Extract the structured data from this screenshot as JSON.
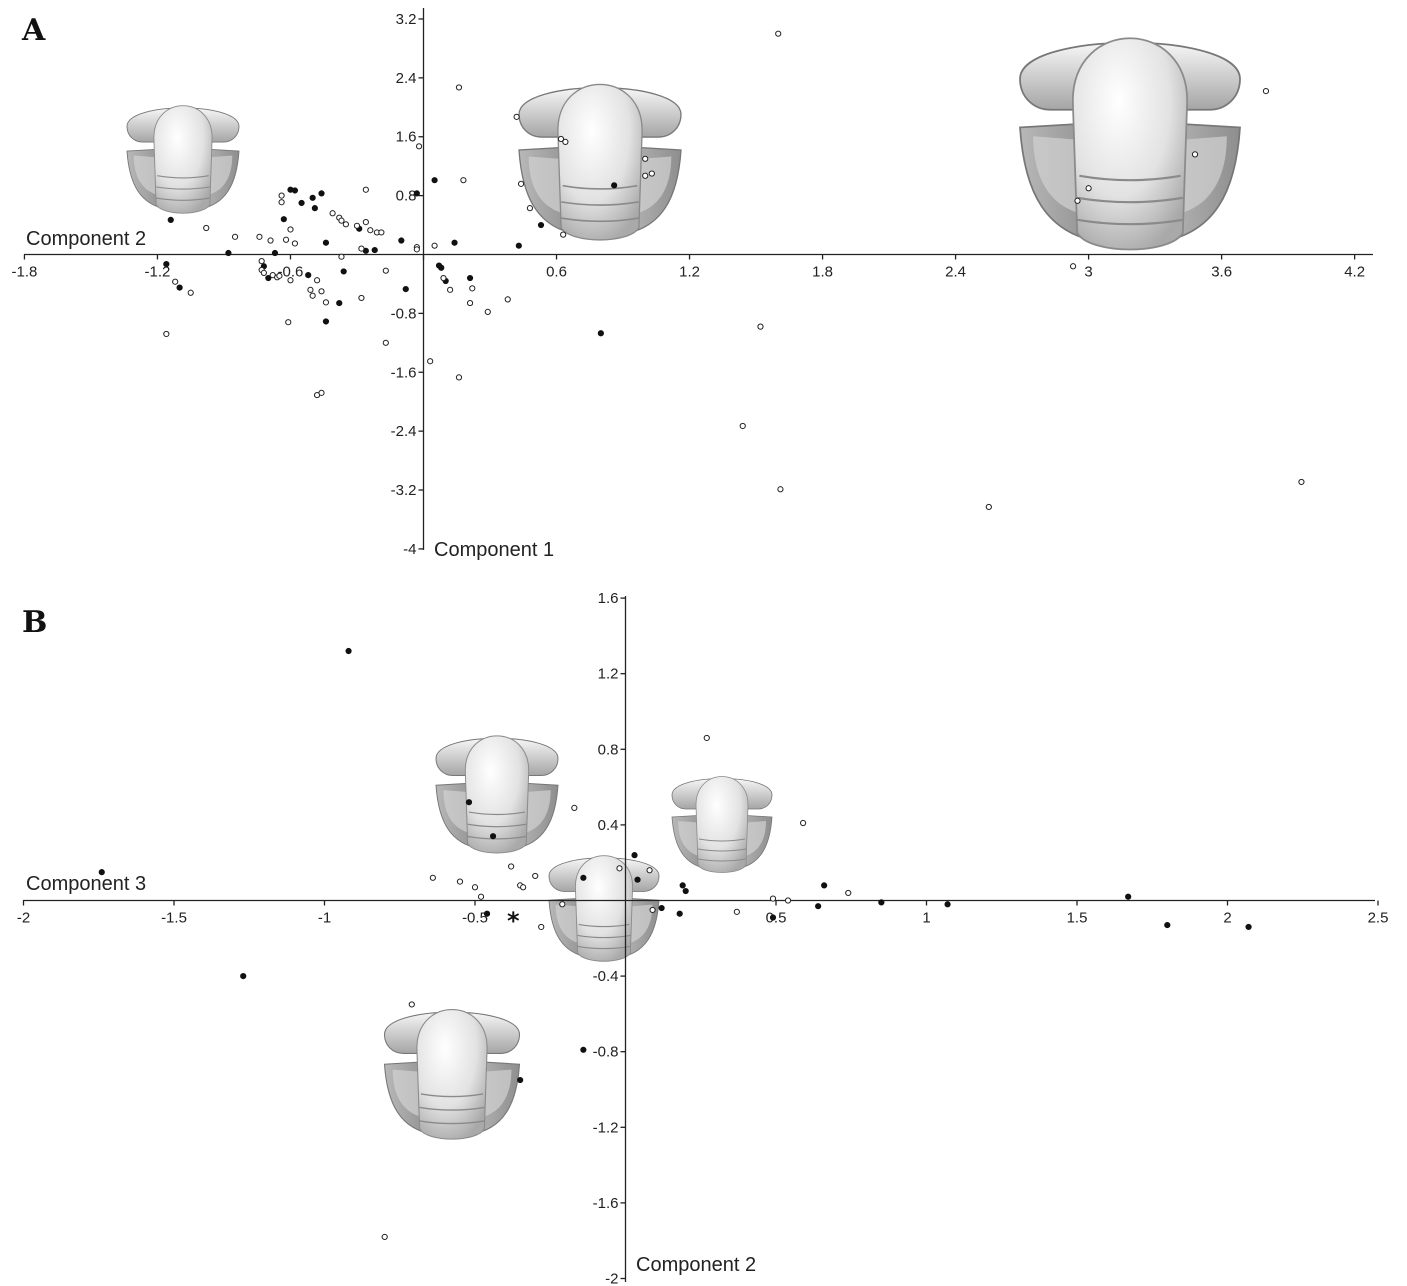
{
  "colors": {
    "filled": "#111111",
    "open": "#ffffff",
    "axis": "#222222",
    "cranidium_light": "#eeeeee",
    "cranidium_dark": "#9a9a9a"
  },
  "icons": {
    "cranidium": "trilobite-cranidium-illustration"
  },
  "chart_data": [
    {
      "panel": "A",
      "type": "scatter",
      "xlabel": "Component 1",
      "ylabel": "Component 2",
      "xlim": [
        -1.8,
        4.3
      ],
      "ylim": [
        -4,
        3.3
      ],
      "xticks": [
        -1.8,
        -1.2,
        -0.6,
        0,
        0.6,
        1.2,
        1.8,
        2.4,
        3,
        3.6,
        4.2
      ],
      "xtick_labels": [
        "-1.8",
        "-1.2",
        "-0.6",
        "",
        "0.6",
        "1.2",
        "1.8",
        "2.4",
        "3",
        "3.6",
        "4.2"
      ],
      "yticks": [
        3.2,
        2.4,
        1.6,
        0.8,
        -0.8,
        -1.6,
        -2.4,
        -3.2,
        -4
      ],
      "ytick_labels": [
        "3.2",
        "2.4",
        "1.6",
        "0.8",
        "-0.8",
        "-1.6",
        "-2.4",
        "-3.2",
        "-4"
      ],
      "grid": false,
      "series": [
        {
          "marker": "filled",
          "points": [
            [
              -1.14,
              0.47
            ],
            [
              -1.16,
              -0.13
            ],
            [
              -1.1,
              -0.45
            ],
            [
              -0.88,
              0.02
            ],
            [
              -0.72,
              -0.16
            ],
            [
              -0.7,
              -0.32
            ],
            [
              -0.67,
              0.02
            ],
            [
              -0.63,
              0.48
            ],
            [
              -0.6,
              0.88
            ],
            [
              -0.58,
              0.87
            ],
            [
              -0.55,
              0.7
            ],
            [
              -0.52,
              -0.28
            ],
            [
              -0.5,
              0.77
            ],
            [
              -0.49,
              0.63
            ],
            [
              -0.46,
              0.83
            ],
            [
              -0.44,
              0.16
            ],
            [
              -0.44,
              -0.91
            ],
            [
              -0.38,
              -0.66
            ],
            [
              -0.36,
              -0.23
            ],
            [
              -0.29,
              0.35
            ],
            [
              -0.26,
              0.05
            ],
            [
              -0.22,
              0.06
            ],
            [
              -0.1,
              0.19
            ],
            [
              -0.08,
              -0.47
            ],
            [
              -0.03,
              0.83
            ],
            [
              0.05,
              1.01
            ],
            [
              0.07,
              -0.15
            ],
            [
              0.08,
              -0.18
            ],
            [
              0.1,
              -0.36
            ],
            [
              0.14,
              0.16
            ],
            [
              0.21,
              -0.32
            ],
            [
              0.43,
              0.12
            ],
            [
              0.53,
              0.4
            ],
            [
              0.8,
              -1.07
            ],
            [
              0.86,
              0.94
            ]
          ]
        },
        {
          "marker": "open",
          "points": [
            [
              -1.16,
              -1.08
            ],
            [
              -1.12,
              -0.37
            ],
            [
              -1.05,
              -0.52
            ],
            [
              -0.98,
              0.36
            ],
            [
              -0.85,
              0.24
            ],
            [
              -0.74,
              0.24
            ],
            [
              -0.73,
              -0.09
            ],
            [
              -0.73,
              -0.21
            ],
            [
              -0.72,
              -0.25
            ],
            [
              -0.69,
              0.19
            ],
            [
              -0.68,
              -0.28
            ],
            [
              -0.66,
              -0.31
            ],
            [
              -0.65,
              -0.29
            ],
            [
              -0.64,
              0.71
            ],
            [
              -0.64,
              0.8
            ],
            [
              -0.62,
              0.2
            ],
            [
              -0.61,
              -0.92
            ],
            [
              -0.6,
              0.34
            ],
            [
              -0.6,
              -0.35
            ],
            [
              -0.58,
              0.15
            ],
            [
              -0.51,
              -0.48
            ],
            [
              -0.5,
              -0.56
            ],
            [
              -0.48,
              -0.35
            ],
            [
              -0.48,
              -1.91
            ],
            [
              -0.46,
              -0.5
            ],
            [
              -0.46,
              -1.88
            ],
            [
              -0.44,
              -0.65
            ],
            [
              -0.41,
              0.56
            ],
            [
              -0.38,
              0.5
            ],
            [
              -0.37,
              -0.03
            ],
            [
              -0.37,
              0.46
            ],
            [
              -0.35,
              0.41
            ],
            [
              -0.3,
              0.39
            ],
            [
              -0.28,
              0.08
            ],
            [
              -0.28,
              -0.59
            ],
            [
              -0.26,
              0.88
            ],
            [
              -0.26,
              0.44
            ],
            [
              -0.24,
              0.33
            ],
            [
              -0.21,
              0.3
            ],
            [
              -0.19,
              0.3
            ],
            [
              -0.17,
              -0.22
            ],
            [
              -0.17,
              -1.2
            ],
            [
              -0.03,
              0.1
            ],
            [
              -0.03,
              0.07
            ],
            [
              -0.02,
              1.47
            ],
            [
              0.03,
              -1.45
            ],
            [
              0.05,
              0.12
            ],
            [
              0.09,
              -0.32
            ],
            [
              0.12,
              -0.48
            ],
            [
              0.16,
              2.27
            ],
            [
              0.16,
              -1.67
            ],
            [
              0.18,
              1.01
            ],
            [
              0.21,
              -0.66
            ],
            [
              0.22,
              -0.46
            ],
            [
              0.29,
              -0.78
            ],
            [
              0.38,
              -0.61
            ],
            [
              0.42,
              1.87
            ],
            [
              0.44,
              0.96
            ],
            [
              0.48,
              0.63
            ],
            [
              0.62,
              1.57
            ],
            [
              0.63,
              0.27
            ],
            [
              0.64,
              1.53
            ],
            [
              1.0,
              1.3
            ],
            [
              1.0,
              1.07
            ],
            [
              1.03,
              1.1
            ],
            [
              1.44,
              -2.33
            ],
            [
              1.52,
              -0.98
            ],
            [
              1.6,
              3.0
            ],
            [
              1.61,
              -3.19
            ],
            [
              2.55,
              -3.43
            ],
            [
              2.93,
              -0.16
            ],
            [
              2.95,
              0.73
            ],
            [
              3.0,
              0.9
            ],
            [
              3.48,
              1.36
            ],
            [
              3.8,
              2.22
            ],
            [
              3.96,
              -3.09
            ]
          ]
        }
      ],
      "panel_label": "A"
    },
    {
      "panel": "B",
      "type": "scatter",
      "xlabel": "Component 2",
      "ylabel": "Component 3",
      "xlim": [
        -2,
        2.5
      ],
      "ylim": [
        -2,
        1.6
      ],
      "xticks": [
        -2,
        -1.5,
        -1,
        -0.5,
        0.5,
        1,
        1.5,
        2,
        2.5
      ],
      "xtick_labels": [
        "-2",
        "-1.5",
        "-1",
        "-0.5",
        "0.5",
        "1",
        "1.5",
        "2",
        "2.5"
      ],
      "yticks": [
        1.6,
        1.2,
        0.8,
        0.4,
        -0.4,
        -0.8,
        -1.2,
        -1.6,
        -2
      ],
      "ytick_labels": [
        "1.6",
        "1.2",
        "0.8",
        "0.4",
        "-0.4",
        "-0.8",
        "-1.2",
        "-1.6",
        "-2"
      ],
      "grid": false,
      "series": [
        {
          "marker": "filled",
          "points": [
            [
              -1.74,
              0.15
            ],
            [
              -1.27,
              -0.4
            ],
            [
              -0.92,
              1.32
            ],
            [
              -0.52,
              0.52
            ],
            [
              -0.46,
              -0.07
            ],
            [
              -0.44,
              0.34
            ],
            [
              -0.35,
              -0.95
            ],
            [
              -0.14,
              -0.79
            ],
            [
              -0.14,
              0.12
            ],
            [
              0.03,
              0.24
            ],
            [
              0.04,
              0.11
            ],
            [
              0.12,
              -0.04
            ],
            [
              0.18,
              -0.07
            ],
            [
              0.19,
              0.08
            ],
            [
              0.2,
              0.05
            ],
            [
              0.49,
              -0.09
            ],
            [
              0.64,
              -0.03
            ],
            [
              0.66,
              0.08
            ],
            [
              0.85,
              -0.01
            ],
            [
              1.07,
              -0.02
            ],
            [
              1.67,
              0.02
            ],
            [
              1.8,
              -0.13
            ],
            [
              2.07,
              -0.14
            ]
          ]
        },
        {
          "marker": "open",
          "points": [
            [
              -0.8,
              -1.78
            ],
            [
              -0.71,
              -0.55
            ],
            [
              -0.64,
              0.12
            ],
            [
              -0.55,
              0.1
            ],
            [
              -0.5,
              0.07
            ],
            [
              -0.48,
              0.02
            ],
            [
              -0.38,
              0.18
            ],
            [
              -0.35,
              0.08
            ],
            [
              -0.34,
              0.07
            ],
            [
              -0.3,
              0.13
            ],
            [
              -0.28,
              -0.14
            ],
            [
              -0.21,
              -0.02
            ],
            [
              -0.17,
              0.49
            ],
            [
              -0.02,
              0.17
            ],
            [
              0.09,
              -0.05
            ],
            [
              0.08,
              0.16
            ],
            [
              0.27,
              0.86
            ],
            [
              0.37,
              -0.06
            ],
            [
              0.49,
              0.01
            ],
            [
              0.54,
              0.0
            ],
            [
              0.59,
              0.41
            ],
            [
              0.74,
              0.04
            ]
          ]
        }
      ],
      "annotations": [
        "*"
      ],
      "panel_label": "B"
    }
  ]
}
